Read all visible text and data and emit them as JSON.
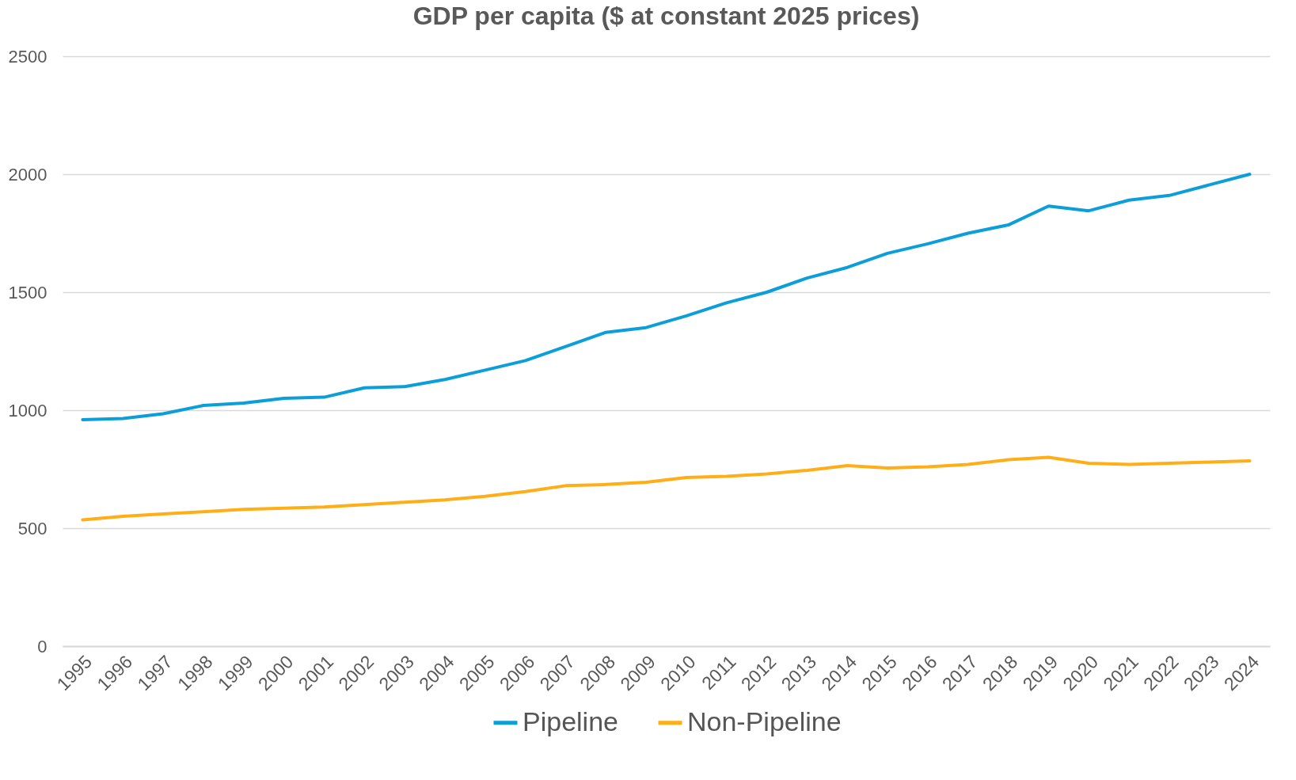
{
  "chart_data": {
    "type": "line",
    "title": "GDP per capita ($ at constant 2025 prices)",
    "categories": [
      "1995",
      "1996",
      "1997",
      "1998",
      "1999",
      "2000",
      "2001",
      "2002",
      "2003",
      "2004",
      "2005",
      "2006",
      "2007",
      "2008",
      "2009",
      "2010",
      "2011",
      "2012",
      "2013",
      "2014",
      "2015",
      "2016",
      "2017",
      "2018",
      "2019",
      "2020",
      "2021",
      "2022",
      "2023",
      "2024"
    ],
    "series": [
      {
        "name": "Pipeline",
        "color": "#0b9ed9",
        "values": [
          960,
          965,
          985,
          1020,
          1030,
          1050,
          1055,
          1095,
          1100,
          1130,
          1170,
          1210,
          1270,
          1330,
          1350,
          1400,
          1455,
          1500,
          1560,
          1605,
          1665,
          1705,
          1750,
          1785,
          1865,
          1845,
          1890,
          1910,
          1955,
          2000
        ]
      },
      {
        "name": "Non-Pipeline",
        "color": "#ffae17",
        "values": [
          535,
          550,
          560,
          570,
          580,
          585,
          590,
          600,
          610,
          620,
          635,
          655,
          680,
          685,
          695,
          715,
          720,
          730,
          745,
          765,
          755,
          760,
          770,
          790,
          800,
          775,
          770,
          775,
          780,
          785
        ]
      }
    ],
    "ylim": [
      0,
      2500
    ],
    "yticks": [
      0,
      500,
      1000,
      1500,
      2000,
      2500
    ],
    "grid": "y",
    "legend": "bottom"
  }
}
